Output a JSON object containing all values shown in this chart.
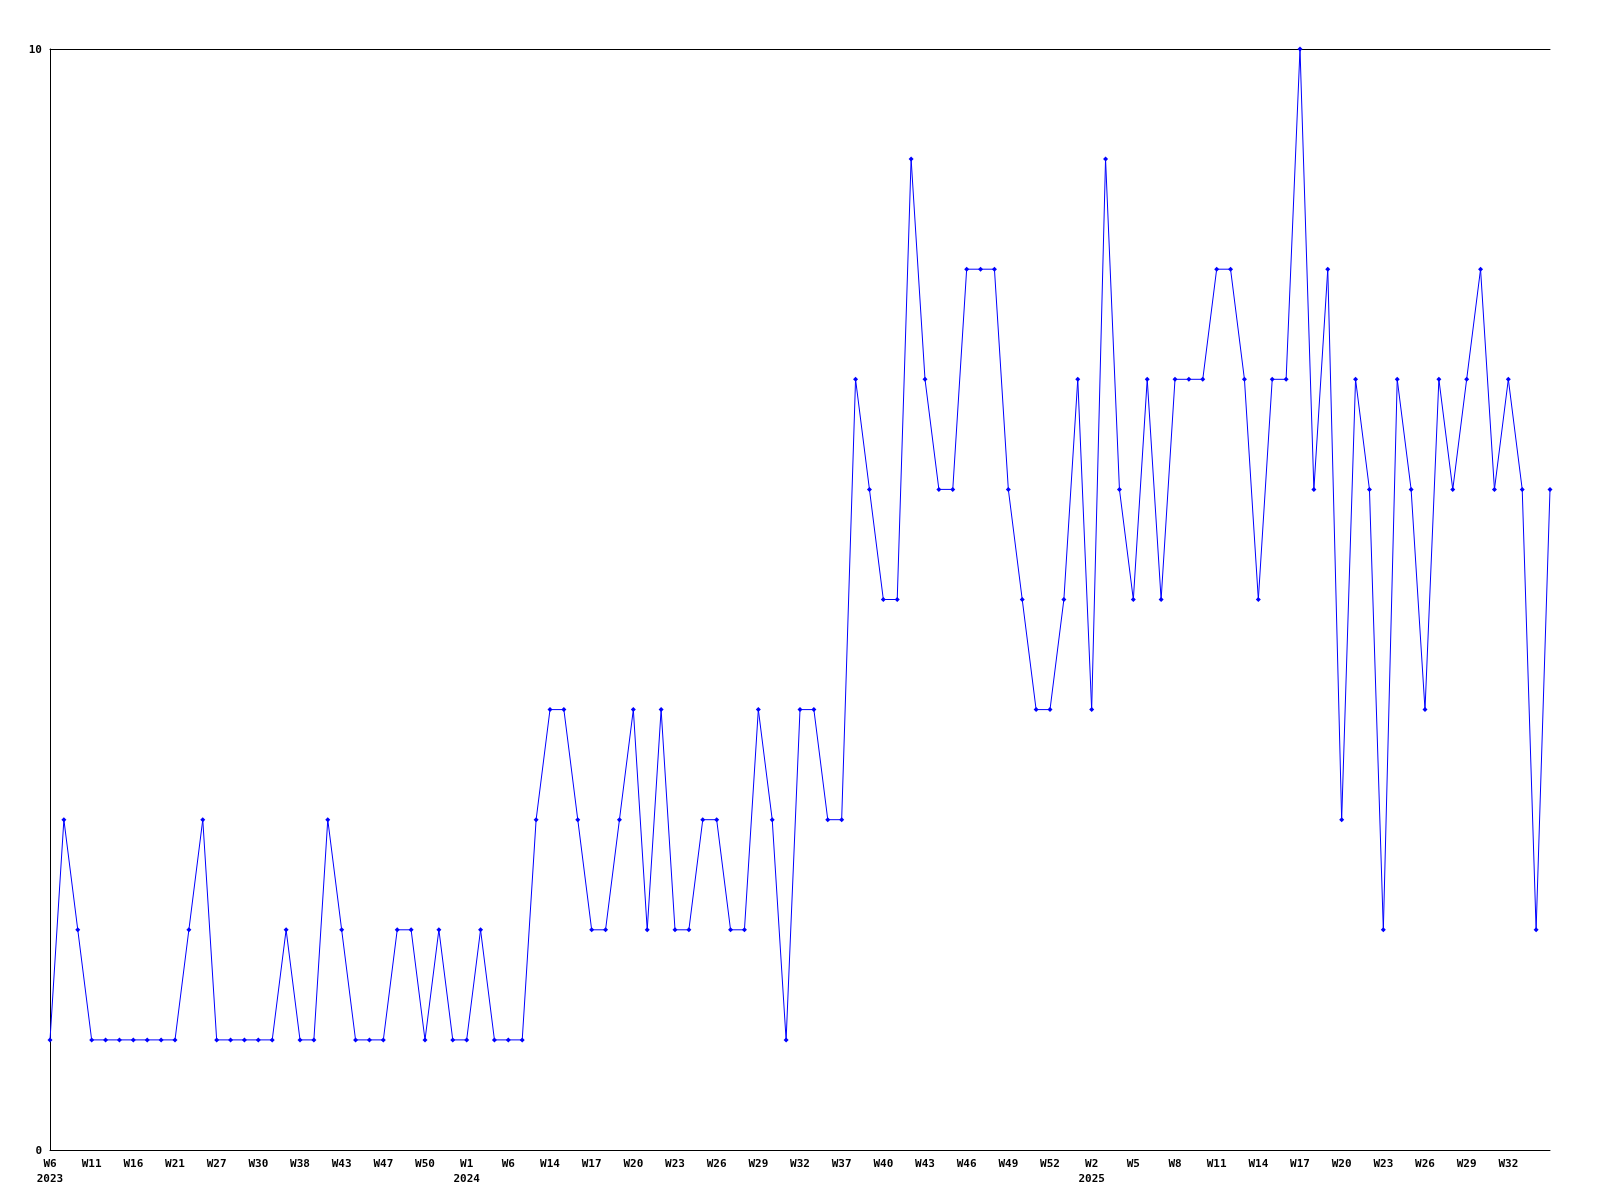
{
  "chart_data": {
    "type": "line",
    "categories": [
      "W6\n2023",
      null,
      null,
      "W11",
      null,
      null,
      "W16",
      null,
      null,
      "W21",
      null,
      null,
      "W27",
      null,
      null,
      "W30",
      null,
      null,
      "W38",
      null,
      null,
      "W43",
      null,
      null,
      "W47",
      null,
      null,
      "W50",
      null,
      null,
      "W1\n2024",
      null,
      null,
      "W6",
      null,
      null,
      "W14",
      null,
      null,
      "W17",
      null,
      null,
      "W20",
      null,
      null,
      "W23",
      null,
      null,
      "W26",
      null,
      null,
      "W29",
      null,
      null,
      "W32",
      null,
      null,
      "W37",
      null,
      null,
      "W40",
      null,
      null,
      "W43",
      null,
      null,
      "W46",
      null,
      null,
      "W49",
      null,
      null,
      "W52",
      null,
      null,
      "W2\n2025",
      null,
      null,
      "W5",
      null,
      null,
      "W8",
      null,
      null,
      "W11",
      null,
      null,
      "W14",
      null,
      null,
      "W17",
      null,
      null,
      "W20",
      null,
      null,
      "W23",
      null,
      null,
      "W26",
      null,
      null,
      "W29",
      null,
      null,
      "W32",
      null,
      null,
      null
    ],
    "series": [
      {
        "color": "#0000ff",
        "values": [
          1,
          3,
          2,
          1,
          1,
          1,
          1,
          1,
          1,
          1,
          2,
          3,
          1,
          1,
          1,
          1,
          1,
          2,
          1,
          1,
          3,
          2,
          1,
          1,
          1,
          2,
          2,
          1,
          2,
          1,
          1,
          2,
          1,
          1,
          1,
          3,
          4,
          4,
          3,
          2,
          2,
          3,
          4,
          2,
          4,
          2,
          2,
          3,
          3,
          2,
          2,
          4,
          3,
          1,
          4,
          4,
          3,
          3,
          7,
          6,
          5,
          5,
          9,
          7,
          6,
          6,
          8,
          8,
          8,
          6,
          5,
          4,
          4,
          5,
          7,
          4,
          9,
          6,
          5,
          7,
          5,
          7,
          7,
          7,
          8,
          8,
          7,
          5,
          7,
          7,
          10,
          6,
          8,
          3,
          7,
          6,
          2,
          7,
          6,
          4,
          7,
          6,
          7,
          8,
          6,
          7,
          6,
          2,
          6
        ]
      }
    ],
    "ylim": [
      0,
      10
    ],
    "yticks": [
      0,
      10
    ],
    "grid": false,
    "marker": "diamond",
    "line_style": "solid"
  }
}
